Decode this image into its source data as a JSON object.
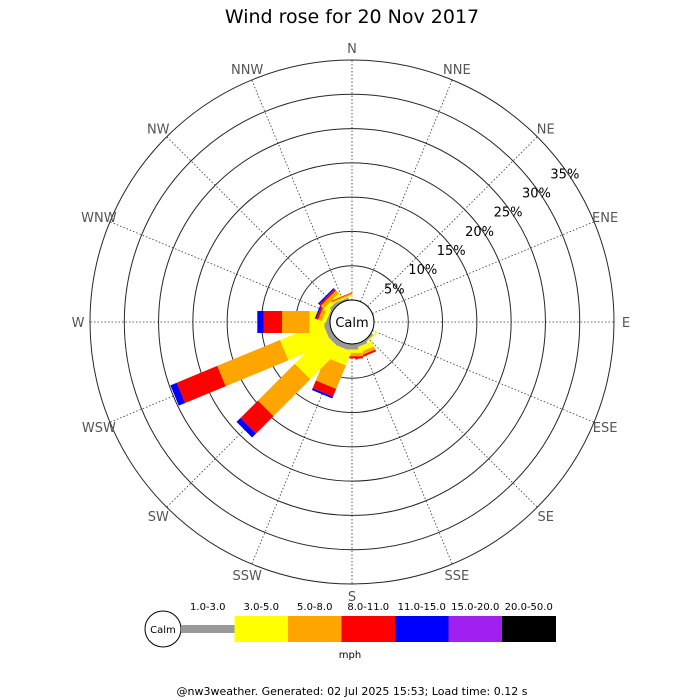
{
  "chart_data": {
    "type": "wind_rose",
    "title": "Wind rose for 20 Nov 2017",
    "center_label": "Calm",
    "directions": [
      "N",
      "NNE",
      "NE",
      "ENE",
      "E",
      "ESE",
      "SE",
      "SSE",
      "S",
      "SSW",
      "SW",
      "WSW",
      "W",
      "WNW",
      "NW",
      "NNW"
    ],
    "radial_ticks": [
      5,
      10,
      15,
      20,
      25,
      30,
      35
    ],
    "radial_tick_labels": [
      "5%",
      "10%",
      "15%",
      "20%",
      "25%",
      "30%",
      "35%"
    ],
    "radial_max": 35,
    "speed_bins": [
      {
        "label": "1.0-3.0",
        "color": "#999999"
      },
      {
        "label": "3.0-5.0",
        "color": "#ffff00"
      },
      {
        "label": "5.0-8.0",
        "color": "#ffa500"
      },
      {
        "label": "8.0-11.0",
        "color": "#ff0000"
      },
      {
        "label": "11.0-15.0",
        "color": "#0000ff"
      },
      {
        "label": "15.0-20.0",
        "color": "#a020f0"
      },
      {
        "label": "20.0-50.0",
        "color": "#000000"
      }
    ],
    "series": [
      {
        "direction": "N",
        "values": [
          0,
          0,
          0,
          0,
          0,
          0,
          0
        ]
      },
      {
        "direction": "NNE",
        "values": [
          0,
          0,
          0,
          0,
          0,
          0,
          0
        ]
      },
      {
        "direction": "NE",
        "values": [
          0,
          0,
          0,
          0,
          0,
          0,
          0
        ]
      },
      {
        "direction": "ENE",
        "values": [
          0,
          0,
          0,
          0,
          0,
          0,
          0
        ]
      },
      {
        "direction": "E",
        "values": [
          0,
          0,
          0,
          0,
          0,
          0,
          0
        ]
      },
      {
        "direction": "ESE",
        "values": [
          0,
          0,
          0,
          0,
          0,
          0,
          0
        ]
      },
      {
        "direction": "SE",
        "values": [
          0.3,
          0.2,
          0,
          0,
          0,
          0,
          0
        ]
      },
      {
        "direction": "SSE",
        "values": [
          0.5,
          0.8,
          0.5,
          0.3,
          0,
          0,
          0
        ]
      },
      {
        "direction": "S",
        "values": [
          0.8,
          0.5,
          0.5,
          0.3,
          0,
          0,
          0
        ]
      },
      {
        "direction": "SSW",
        "values": [
          0.8,
          2.2,
          3.7,
          1.2,
          0.3,
          0,
          0
        ]
      },
      {
        "direction": "SW",
        "values": [
          0.8,
          6.2,
          7.6,
          3.6,
          0.8,
          0,
          0
        ]
      },
      {
        "direction": "WSW",
        "values": [
          0.8,
          6.7,
          9.9,
          6.4,
          1.0,
          0,
          0
        ]
      },
      {
        "direction": "W",
        "values": [
          0.8,
          2.2,
          4.0,
          2.7,
          0.9,
          0,
          0
        ]
      },
      {
        "direction": "WNW",
        "values": [
          0.3,
          0.6,
          0.6,
          0.3,
          0.2,
          0,
          0
        ]
      },
      {
        "direction": "NW",
        "values": [
          0.5,
          0.6,
          0.6,
          0.3,
          0.2,
          0,
          0
        ]
      },
      {
        "direction": "NNW",
        "values": [
          0.3,
          0.2,
          0.2,
          0.1,
          0,
          0,
          0
        ]
      }
    ],
    "legend_calm_label": "Calm",
    "legend_unit": "mph",
    "legend_placement": "bottom",
    "grid": true
  },
  "footer": {
    "text": "@nw3weather. Generated: 02 Jul 2025 15:53; Load time: 0.12 s"
  }
}
